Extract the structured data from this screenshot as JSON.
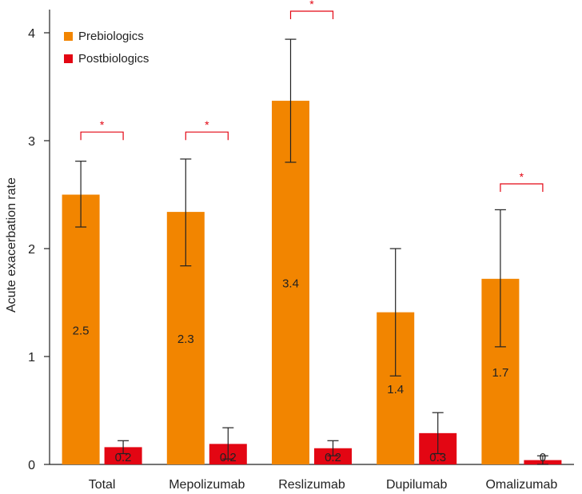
{
  "chart_data": {
    "type": "bar",
    "ylabel": "Acute exacerbation rate",
    "ylim": [
      0,
      4
    ],
    "yticks": [
      "0",
      "1",
      "2",
      "3",
      "4"
    ],
    "categories": [
      "Total",
      "Mepolizumab",
      "Reslizumab",
      "Dupilumab",
      "Omalizumab"
    ],
    "series": [
      {
        "name": "Prebiologics",
        "color": "#f28500",
        "values": [
          2.5,
          2.34,
          3.37,
          1.41,
          1.72
        ],
        "labels": [
          "2.5",
          "2.3",
          "3.4",
          "1.4",
          "1.7"
        ],
        "err_low": [
          2.2,
          1.84,
          2.8,
          0.82,
          1.09
        ],
        "err_high": [
          2.81,
          2.83,
          3.94,
          2.0,
          2.36
        ]
      },
      {
        "name": "Postbiologics",
        "color": "#e30613",
        "values": [
          0.16,
          0.19,
          0.15,
          0.29,
          0.04
        ],
        "labels": [
          "0.2",
          "0.2",
          "0.2",
          "0.3",
          "0"
        ],
        "err_low": [
          0.1,
          0.05,
          0.08,
          0.1,
          0.0
        ],
        "err_high": [
          0.22,
          0.34,
          0.22,
          0.48,
          0.08
        ]
      }
    ],
    "significance": [
      {
        "category": "Total",
        "text": "*",
        "y": 3.08
      },
      {
        "category": "Mepolizumab",
        "text": "*",
        "y": 3.08
      },
      {
        "category": "Reslizumab",
        "text": "*",
        "y": 4.2
      },
      {
        "category": "Omalizumab",
        "text": "*",
        "y": 2.6
      }
    ],
    "significance_color": "#e30613",
    "legend_position": "top-left",
    "grid": false
  }
}
